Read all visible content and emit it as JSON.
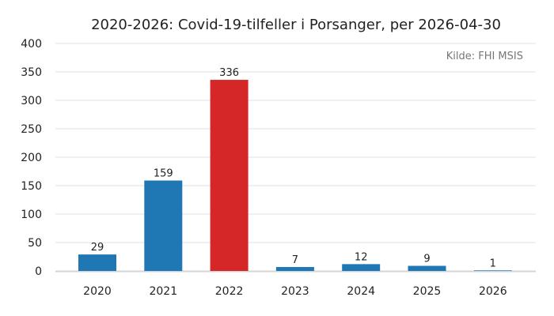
{
  "chart_data": {
    "type": "bar",
    "title": "2020-2026: Covid-19-tilfeller i Porsanger, per 2026-04-30",
    "source": "Kilde: FHI MSIS",
    "categories": [
      "2020",
      "2021",
      "2022",
      "2023",
      "2024",
      "2025",
      "2026"
    ],
    "values": [
      29,
      159,
      336,
      7,
      12,
      9,
      1
    ],
    "data_labels": [
      "29",
      "159",
      "336",
      "7",
      "12",
      "9",
      "1"
    ],
    "bar_colors": [
      "#1f77b4",
      "#1f77b4",
      "#d62728",
      "#1f77b4",
      "#1f77b4",
      "#1f77b4",
      "#1f77b4"
    ],
    "highlight_color": "#d62728",
    "base_color": "#1f77b4",
    "ylim": [
      0,
      400
    ],
    "yticks": [
      0,
      50,
      100,
      150,
      200,
      250,
      300,
      350,
      400
    ],
    "ytick_labels": [
      "0",
      "50",
      "100",
      "150",
      "200",
      "250",
      "300",
      "350",
      "400"
    ],
    "grid": "horizontal",
    "xlabel": "",
    "ylabel": ""
  }
}
